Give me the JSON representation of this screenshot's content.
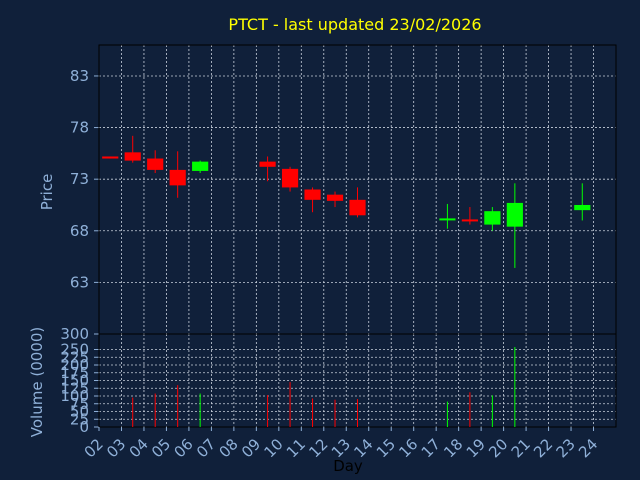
{
  "colors": {
    "background": "#10203a",
    "up": "#00ff00",
    "down": "#ff0000",
    "title": "#ffff00",
    "axis_text": "#8fb0d8",
    "grid": "#c8d0dc"
  },
  "chart_data": [
    {
      "type": "candlestick",
      "title": "PTCT - last updated 23/02/2026",
      "ylabel": "Price",
      "ylim": [
        58,
        86
      ],
      "yticks": [
        63,
        68,
        73,
        78,
        83
      ],
      "grid": true,
      "x": [
        "02",
        "03",
        "04",
        "05",
        "06",
        "07",
        "08",
        "09",
        "10",
        "11",
        "12",
        "13",
        "14",
        "15",
        "16",
        "17",
        "18",
        "19",
        "20",
        "21",
        "22",
        "23",
        "24"
      ],
      "candles": [
        {
          "day": "02",
          "open": 75.2,
          "close": 75.0,
          "high": 75.2,
          "low": 75.0
        },
        {
          "day": "03",
          "open": 75.6,
          "close": 74.8,
          "high": 77.2,
          "low": 74.6
        },
        {
          "day": "04",
          "open": 75.0,
          "close": 73.9,
          "high": 75.8,
          "low": 73.6
        },
        {
          "day": "05",
          "open": 73.9,
          "close": 72.4,
          "high": 75.7,
          "low": 71.2
        },
        {
          "day": "06",
          "open": 73.8,
          "close": 74.7,
          "high": 74.8,
          "low": 73.6
        },
        {
          "day": "09",
          "open": 74.7,
          "close": 74.2,
          "high": 75.2,
          "low": 72.8
        },
        {
          "day": "10",
          "open": 74.0,
          "close": 72.2,
          "high": 74.2,
          "low": 71.8
        },
        {
          "day": "11",
          "open": 72.0,
          "close": 71.0,
          "high": 72.2,
          "low": 69.8
        },
        {
          "day": "12",
          "open": 71.5,
          "close": 70.9,
          "high": 71.8,
          "low": 70.3
        },
        {
          "day": "13",
          "open": 71.0,
          "close": 69.5,
          "high": 72.2,
          "low": 69.3
        },
        {
          "day": "17",
          "open": 69.1,
          "close": 69.2,
          "high": 70.6,
          "low": 68.2
        },
        {
          "day": "18",
          "open": 69.1,
          "close": 69.0,
          "high": 70.3,
          "low": 68.6
        },
        {
          "day": "19",
          "open": 68.6,
          "close": 69.9,
          "high": 70.3,
          "low": 68.0
        },
        {
          "day": "20",
          "open": 68.4,
          "close": 70.7,
          "high": 72.6,
          "low": 64.4
        },
        {
          "day": "23",
          "open": 70.0,
          "close": 70.5,
          "high": 72.6,
          "low": 69.0
        }
      ]
    },
    {
      "type": "bar",
      "ylabel": "Volume (0000)",
      "xlabel": "Day",
      "ylim": [
        0,
        300
      ],
      "yticks": [
        0,
        25,
        50,
        75,
        100,
        125,
        150,
        175,
        200,
        225,
        250,
        300
      ],
      "grid": true,
      "categories": [
        "02",
        "03",
        "04",
        "05",
        "06",
        "07",
        "08",
        "09",
        "10",
        "11",
        "12",
        "13",
        "14",
        "15",
        "16",
        "17",
        "18",
        "19",
        "20",
        "21",
        "22",
        "23",
        "24"
      ],
      "bars": [
        {
          "day": "03",
          "value": 95,
          "color": "#ff0000"
        },
        {
          "day": "04",
          "value": 108,
          "color": "#ff0000"
        },
        {
          "day": "05",
          "value": 135,
          "color": "#ff0000"
        },
        {
          "day": "06",
          "value": 108,
          "color": "#00ff00"
        },
        {
          "day": "09",
          "value": 103,
          "color": "#ff0000"
        },
        {
          "day": "10",
          "value": 145,
          "color": "#ff0000"
        },
        {
          "day": "11",
          "value": 92,
          "color": "#ff0000"
        },
        {
          "day": "12",
          "value": 88,
          "color": "#ff0000"
        },
        {
          "day": "13",
          "value": 90,
          "color": "#ff0000"
        },
        {
          "day": "17",
          "value": 82,
          "color": "#00ff00"
        },
        {
          "day": "18",
          "value": 112,
          "color": "#ff0000"
        },
        {
          "day": "19",
          "value": 102,
          "color": "#00ff00"
        },
        {
          "day": "20",
          "value": 258,
          "color": "#00ff00"
        }
      ]
    }
  ]
}
